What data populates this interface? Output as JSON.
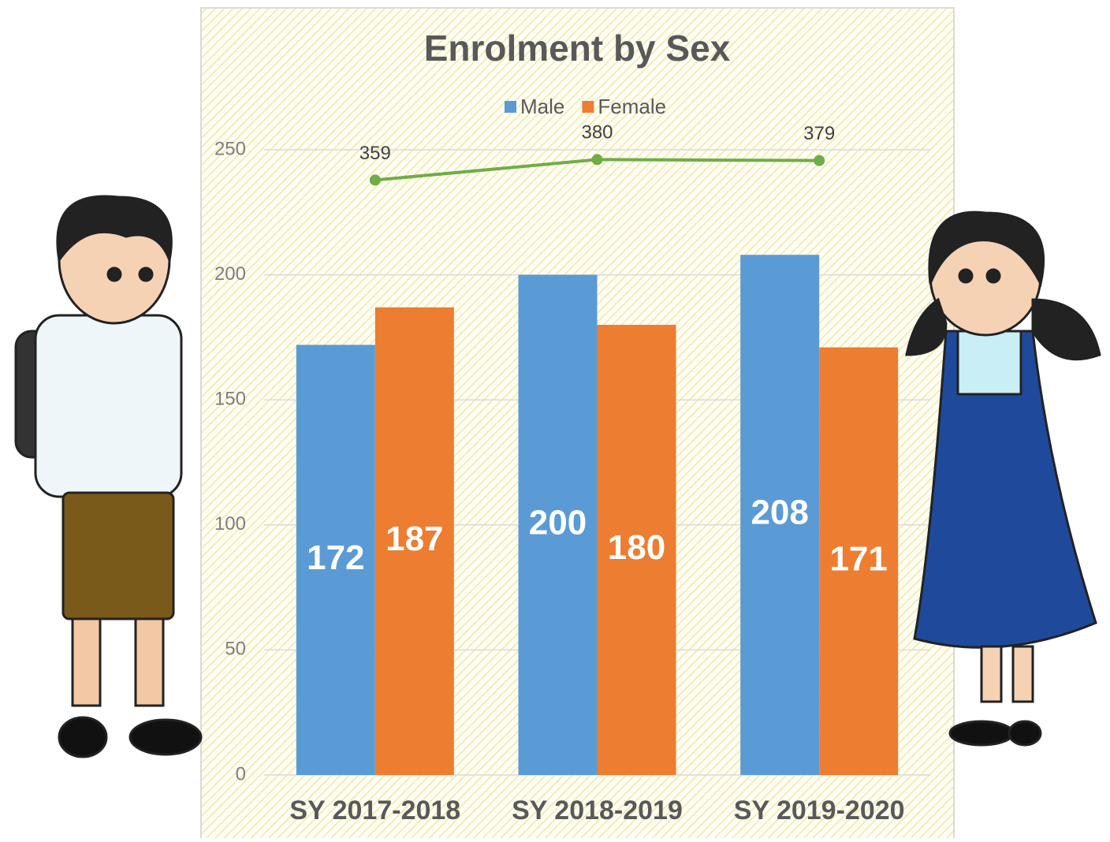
{
  "chart_data": {
    "type": "bar",
    "title": "Enrolment by Sex",
    "categories": [
      "SY 2017-2018",
      "SY 2018-2019",
      "SY 2019-2020"
    ],
    "series": [
      {
        "name": "Male",
        "color": "#5b9bd5",
        "values": [
          172,
          200,
          208
        ]
      },
      {
        "name": "Female",
        "color": "#ed7d31",
        "values": [
          187,
          180,
          171
        ]
      },
      {
        "type": "line",
        "axis": "y2",
        "color": "#70ad47",
        "values": [
          359,
          380,
          379
        ]
      }
    ],
    "ylim": [
      0,
      250
    ],
    "yticks": [
      0,
      50,
      100,
      150,
      200,
      250
    ],
    "y2lim": [
      -250,
      390
    ],
    "grid": true,
    "legend": "top"
  }
}
